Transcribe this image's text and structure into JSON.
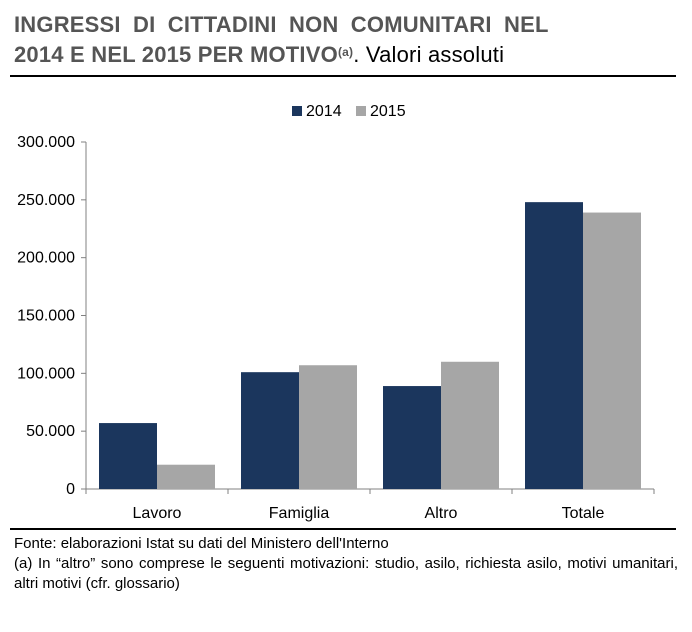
{
  "header": {
    "title_line1": "INGRESSI DI CITTADINI NON COMUNITARI NEL",
    "title_line2": "2014 E NEL 2015 PER MOTIVO",
    "title_sup": "(a)",
    "title_suffix": ". Valori assoluti"
  },
  "chart_data": {
    "type": "bar",
    "title": "",
    "xlabel": "",
    "ylabel": "",
    "categories": [
      "Lavoro",
      "Famiglia",
      "Altro",
      "Totale"
    ],
    "series": [
      {
        "name": "2014",
        "values": [
          57000,
          101000,
          89000,
          248000
        ],
        "color": "#1b365d"
      },
      {
        "name": "2015",
        "values": [
          21000,
          107000,
          110000,
          239000
        ],
        "color": "#a6a6a6"
      }
    ],
    "ylim": [
      0,
      300000
    ],
    "y_ticks": [
      0,
      50000,
      100000,
      150000,
      200000,
      250000,
      300000
    ],
    "y_tick_labels": [
      "0",
      "50.000",
      "100.000",
      "150.000",
      "200.000",
      "250.000",
      "300.000"
    ],
    "grid": false,
    "legend_position": "top-center"
  },
  "footer": {
    "source": "Fonte: elaborazioni Istat su dati del Ministero dell'Interno",
    "note": "(a) In “altro” sono comprese le seguenti motivazioni: studio, asilo, richiesta asilo, motivi umanitari, altri motivi (cfr. glossario)"
  },
  "colors": {
    "bar_2014": "#1b365d",
    "bar_2015": "#a6a6a6",
    "title_text": "#555555",
    "axis": "#808080"
  }
}
